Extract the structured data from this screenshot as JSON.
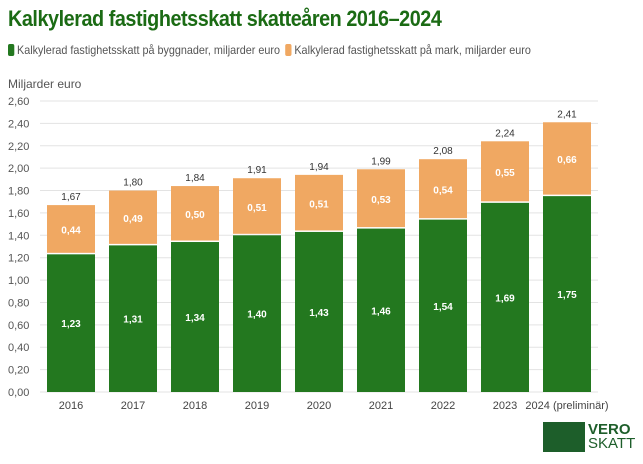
{
  "chart_data": {
    "type": "bar",
    "stacked": true,
    "title": "Kalkylerad fastighetsskatt skatteåren 2016–2024",
    "ylabel": "Miljarder euro",
    "xlabel": "",
    "ylim": [
      0,
      2.6
    ],
    "yticks": [
      "0,00",
      "0,20",
      "0,40",
      "0,60",
      "0,80",
      "1,00",
      "1,20",
      "1,40",
      "1,60",
      "1,80",
      "2,00",
      "2,20",
      "2,40",
      "2,60"
    ],
    "grid": true,
    "legend_placement": "top-left",
    "categories": [
      "2016",
      "2017",
      "2018",
      "2019",
      "2020",
      "2021",
      "2022",
      "2023",
      "2024 (preliminär)"
    ],
    "series": [
      {
        "name": "Kalkylerad fastighetsskatt på byggnader, miljarder euro",
        "color": "#23781f",
        "values": [
          1.23,
          1.31,
          1.34,
          1.4,
          1.43,
          1.46,
          1.54,
          1.69,
          1.75
        ],
        "labels": [
          "1,23",
          "1,31",
          "1,34",
          "1,40",
          "1,43",
          "1,46",
          "1,54",
          "1,69",
          "1,75"
        ]
      },
      {
        "name": "Kalkylerad fastighetsskatt på mark, miljarder euro",
        "color": "#f0a862",
        "values": [
          0.44,
          0.49,
          0.5,
          0.51,
          0.51,
          0.53,
          0.54,
          0.55,
          0.66
        ],
        "labels": [
          "0,44",
          "0,49",
          "0,50",
          "0,51",
          "0,51",
          "0,53",
          "0,54",
          "0,55",
          "0,66"
        ]
      }
    ],
    "totals": [
      "1,67",
      "1,80",
      "1,84",
      "1,91",
      "1,94",
      "1,99",
      "2,08",
      "2,24",
      "2,41"
    ]
  },
  "logo": {
    "line1": "VERO",
    "line2": "SKATT"
  }
}
